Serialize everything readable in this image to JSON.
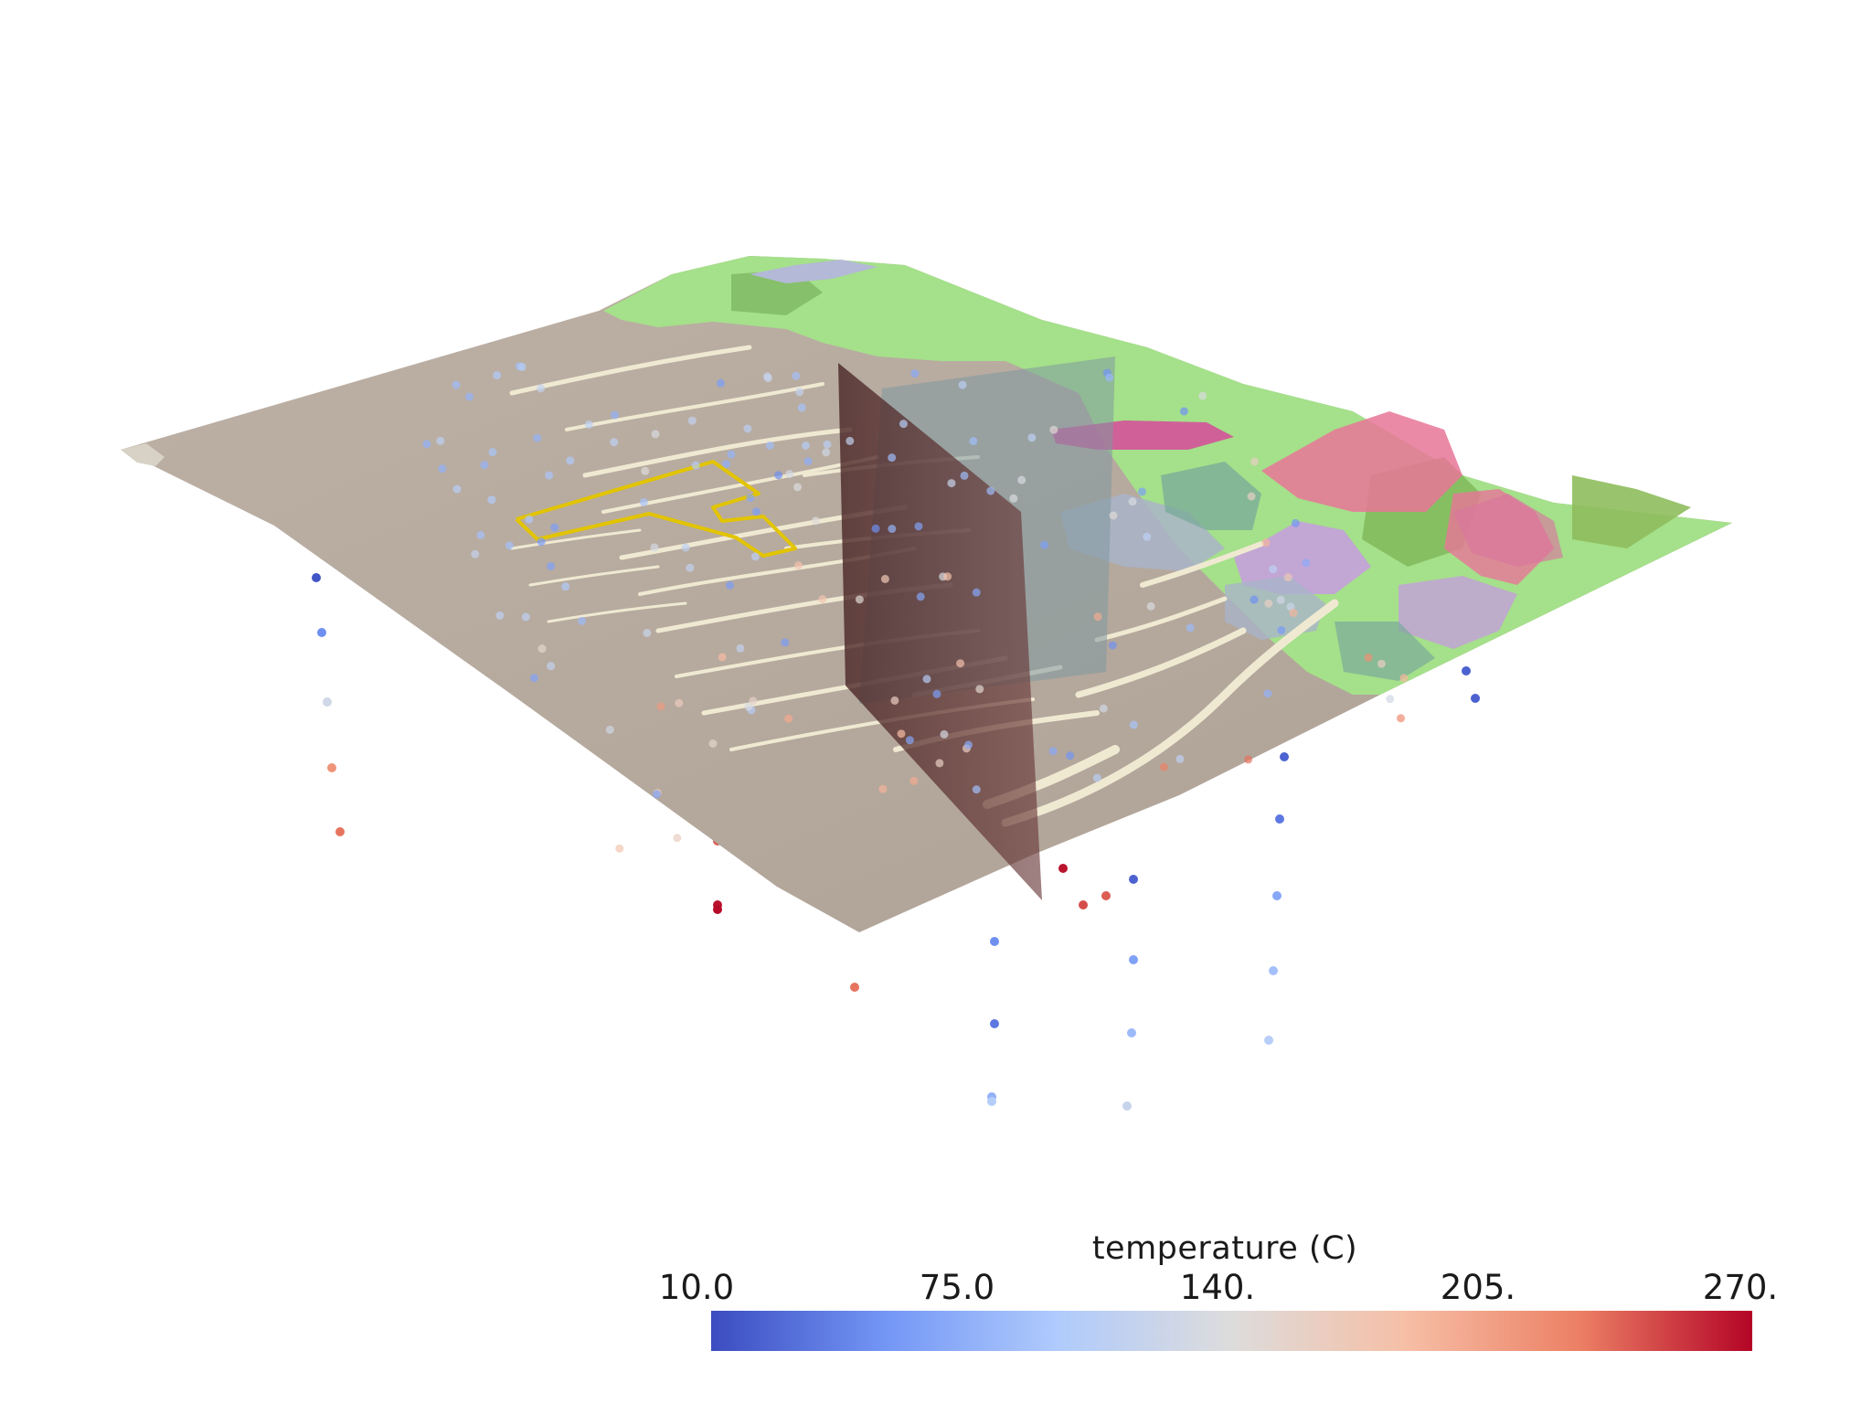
{
  "colorbar": {
    "title": "temperature (C)",
    "ticks": [
      "10.0",
      "75.0",
      "140.",
      "205.",
      "270."
    ],
    "min": 10.0,
    "max": 270.0,
    "colormap": "cool-to-warm",
    "colors": [
      "#3b4cc0",
      "#7396f5",
      "#b0cbfc",
      "#dddcdc",
      "#f6bfa6",
      "#ec8065",
      "#b40426"
    ]
  },
  "scene": {
    "terrain_colors": {
      "basin": "#b7aa9e",
      "channels": "#efe9d2",
      "vegetation": "#a5e08a",
      "dark_vegetation": "#80b85a",
      "pink_unit": "#e87598",
      "magenta_unit": "#d64a9a",
      "lavender_unit": "#c79be0",
      "gray_blue_unit": "#a9b4c8",
      "teal_unit": "#7aa99a"
    },
    "outline_color": "#e2c400",
    "fault_color": "#6b3a3a",
    "cross_section_color": "#7f99a0"
  }
}
